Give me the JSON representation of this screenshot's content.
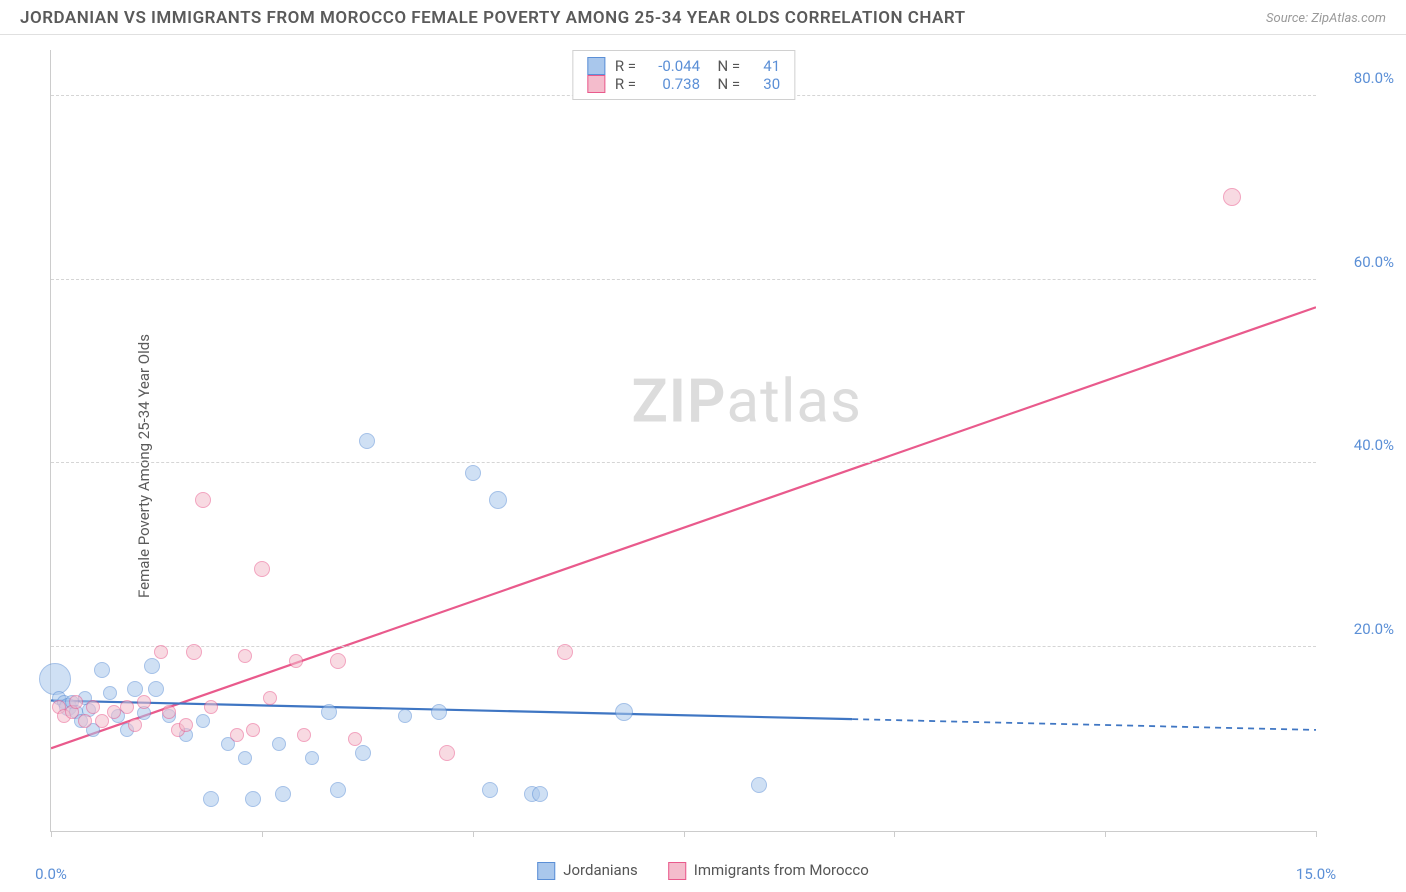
{
  "header": {
    "title": "JORDANIAN VS IMMIGRANTS FROM MOROCCO FEMALE POVERTY AMONG 25-34 YEAR OLDS CORRELATION CHART",
    "source": "Source: ZipAtlas.com"
  },
  "watermark": {
    "zip": "ZIP",
    "rest": "atlas"
  },
  "chart": {
    "type": "scatter",
    "ylabel": "Female Poverty Among 25-34 Year Olds",
    "background_color": "#ffffff",
    "grid_color": "#d5d5d5",
    "axis_color": "#cccccc",
    "tick_color": "#5b8fd6",
    "xlim": [
      0,
      15
    ],
    "ylim": [
      0,
      85
    ],
    "x_ticks": [
      0,
      2.5,
      5,
      7.5,
      10,
      12.5,
      15
    ],
    "x_tick_labels": {
      "0": "0.0%",
      "15": "15.0%"
    },
    "y_ticks": [
      20,
      40,
      60,
      80
    ],
    "y_tick_labels": [
      "20.0%",
      "40.0%",
      "60.0%",
      "80.0%"
    ],
    "series": {
      "jordanians": {
        "label": "Jordanians",
        "fill": "#a9c7ec",
        "stroke": "#5b8fd6",
        "fill_opacity": 0.55,
        "R": "-0.044",
        "N": "41",
        "trend": {
          "x1": 0,
          "y1": 14.2,
          "x2": 15,
          "y2": 11.0,
          "solid_until_x": 9.5,
          "color": "#3f76c3",
          "width": 2.2
        },
        "points": [
          {
            "x": 0.05,
            "y": 16.5,
            "r": 16
          },
          {
            "x": 0.1,
            "y": 14.5,
            "r": 7
          },
          {
            "x": 0.15,
            "y": 14.0,
            "r": 7
          },
          {
            "x": 0.2,
            "y": 13.5,
            "r": 9
          },
          {
            "x": 0.25,
            "y": 14.0,
            "r": 7
          },
          {
            "x": 0.3,
            "y": 13.0,
            "r": 7
          },
          {
            "x": 0.35,
            "y": 12.0,
            "r": 7
          },
          {
            "x": 0.4,
            "y": 14.5,
            "r": 7
          },
          {
            "x": 0.45,
            "y": 13.2,
            "r": 7
          },
          {
            "x": 0.5,
            "y": 11.0,
            "r": 7
          },
          {
            "x": 0.6,
            "y": 17.5,
            "r": 8
          },
          {
            "x": 0.7,
            "y": 15.0,
            "r": 7
          },
          {
            "x": 0.8,
            "y": 12.5,
            "r": 7
          },
          {
            "x": 0.9,
            "y": 11.0,
            "r": 7
          },
          {
            "x": 1.0,
            "y": 15.5,
            "r": 8
          },
          {
            "x": 1.1,
            "y": 12.8,
            "r": 7
          },
          {
            "x": 1.2,
            "y": 18.0,
            "r": 8
          },
          {
            "x": 1.25,
            "y": 15.5,
            "r": 8
          },
          {
            "x": 1.4,
            "y": 12.5,
            "r": 7
          },
          {
            "x": 1.6,
            "y": 10.5,
            "r": 7
          },
          {
            "x": 1.8,
            "y": 12.0,
            "r": 7
          },
          {
            "x": 1.9,
            "y": 3.5,
            "r": 8
          },
          {
            "x": 2.1,
            "y": 9.5,
            "r": 7
          },
          {
            "x": 2.3,
            "y": 8.0,
            "r": 7
          },
          {
            "x": 2.4,
            "y": 3.5,
            "r": 8
          },
          {
            "x": 2.7,
            "y": 9.5,
            "r": 7
          },
          {
            "x": 2.75,
            "y": 4.0,
            "r": 8
          },
          {
            "x": 3.1,
            "y": 8.0,
            "r": 7
          },
          {
            "x": 3.3,
            "y": 13.0,
            "r": 8
          },
          {
            "x": 3.4,
            "y": 4.5,
            "r": 8
          },
          {
            "x": 3.7,
            "y": 8.5,
            "r": 8
          },
          {
            "x": 3.75,
            "y": 42.5,
            "r": 8
          },
          {
            "x": 4.2,
            "y": 12.5,
            "r": 7
          },
          {
            "x": 4.6,
            "y": 13.0,
            "r": 8
          },
          {
            "x": 5.0,
            "y": 39.0,
            "r": 8
          },
          {
            "x": 5.2,
            "y": 4.5,
            "r": 8
          },
          {
            "x": 5.3,
            "y": 36.0,
            "r": 9
          },
          {
            "x": 5.7,
            "y": 4.0,
            "r": 8
          },
          {
            "x": 5.8,
            "y": 4.0,
            "r": 8
          },
          {
            "x": 6.8,
            "y": 13.0,
            "r": 9
          },
          {
            "x": 8.4,
            "y": 5.0,
            "r": 8
          }
        ]
      },
      "morocco": {
        "label": "Immigrants from Morocco",
        "fill": "#f4bccc",
        "stroke": "#e95a8c",
        "fill_opacity": 0.55,
        "R": "0.738",
        "N": "30",
        "trend": {
          "x1": 0,
          "y1": 9.0,
          "x2": 15,
          "y2": 57.0,
          "solid_until_x": 15,
          "color": "#e95a8c",
          "width": 2.2
        },
        "points": [
          {
            "x": 0.1,
            "y": 13.5,
            "r": 7
          },
          {
            "x": 0.15,
            "y": 12.5,
            "r": 7
          },
          {
            "x": 0.25,
            "y": 13.0,
            "r": 7
          },
          {
            "x": 0.3,
            "y": 14.0,
            "r": 7
          },
          {
            "x": 0.4,
            "y": 12.0,
            "r": 7
          },
          {
            "x": 0.5,
            "y": 13.5,
            "r": 7
          },
          {
            "x": 0.6,
            "y": 12.0,
            "r": 7
          },
          {
            "x": 0.75,
            "y": 13.0,
            "r": 7
          },
          {
            "x": 0.9,
            "y": 13.5,
            "r": 7
          },
          {
            "x": 1.0,
            "y": 11.5,
            "r": 7
          },
          {
            "x": 1.1,
            "y": 14.0,
            "r": 7
          },
          {
            "x": 1.3,
            "y": 19.5,
            "r": 7
          },
          {
            "x": 1.4,
            "y": 13.0,
            "r": 7
          },
          {
            "x": 1.5,
            "y": 11.0,
            "r": 7
          },
          {
            "x": 1.6,
            "y": 11.5,
            "r": 7
          },
          {
            "x": 1.7,
            "y": 19.5,
            "r": 8
          },
          {
            "x": 1.8,
            "y": 36.0,
            "r": 8
          },
          {
            "x": 1.9,
            "y": 13.5,
            "r": 7
          },
          {
            "x": 2.2,
            "y": 10.5,
            "r": 7
          },
          {
            "x": 2.3,
            "y": 19.0,
            "r": 7
          },
          {
            "x": 2.4,
            "y": 11.0,
            "r": 7
          },
          {
            "x": 2.5,
            "y": 28.5,
            "r": 8
          },
          {
            "x": 2.6,
            "y": 14.5,
            "r": 7
          },
          {
            "x": 2.9,
            "y": 18.5,
            "r": 7
          },
          {
            "x": 3.0,
            "y": 10.5,
            "r": 7
          },
          {
            "x": 3.4,
            "y": 18.5,
            "r": 8
          },
          {
            "x": 3.6,
            "y": 10.0,
            "r": 7
          },
          {
            "x": 4.7,
            "y": 8.5,
            "r": 8
          },
          {
            "x": 6.1,
            "y": 19.5,
            "r": 8
          },
          {
            "x": 14.0,
            "y": 69.0,
            "r": 9
          }
        ]
      }
    },
    "legend_swatch_border": {
      "blue": "#5b8fd6",
      "pink": "#e95a8c"
    },
    "legend_swatch_fill": {
      "blue": "#a9c7ec",
      "pink": "#f4bccc"
    }
  }
}
